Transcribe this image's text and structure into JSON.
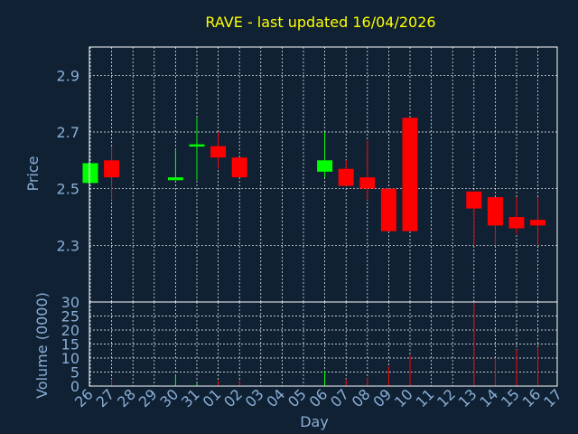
{
  "chart_data": {
    "type": "candlestick",
    "title": "RAVE - last updated 16/04/2026",
    "xlabel": "Day",
    "ylabel_price": "Price",
    "ylabel_volume": "Volume (0000)",
    "x_ticks": [
      "26",
      "27",
      "28",
      "29",
      "30",
      "31",
      "01",
      "02",
      "03",
      "04",
      "05",
      "06",
      "07",
      "08",
      "09",
      "10",
      "11",
      "12",
      "13",
      "14",
      "15",
      "16",
      "17"
    ],
    "price_ticks": [
      2.3,
      2.5,
      2.7,
      2.9
    ],
    "volume_ticks": [
      0,
      5,
      10,
      15,
      20,
      25,
      30
    ],
    "price_ylim": [
      2.1,
      3.0
    ],
    "volume_ylim": [
      0,
      30
    ],
    "grid": true,
    "candles": [
      {
        "day": "26",
        "open": 2.52,
        "high": 2.59,
        "low": 2.52,
        "close": 2.59
      },
      {
        "day": "27",
        "open": 2.6,
        "high": 2.65,
        "low": 2.46,
        "close": 2.54
      },
      {
        "day": "30",
        "open": 2.53,
        "high": 2.64,
        "low": 2.53,
        "close": 2.54
      },
      {
        "day": "31",
        "open": 2.65,
        "high": 2.75,
        "low": 2.53,
        "close": 2.655
      },
      {
        "day": "01",
        "open": 2.65,
        "high": 2.7,
        "low": 2.57,
        "close": 2.61
      },
      {
        "day": "02",
        "open": 2.61,
        "high": 2.61,
        "low": 2.54,
        "close": 2.54
      },
      {
        "day": "06",
        "open": 2.56,
        "high": 2.7,
        "low": 2.54,
        "close": 2.6
      },
      {
        "day": "07",
        "open": 2.57,
        "high": 2.6,
        "low": 2.51,
        "close": 2.51
      },
      {
        "day": "08",
        "open": 2.54,
        "high": 2.67,
        "low": 2.46,
        "close": 2.5
      },
      {
        "day": "09",
        "open": 2.5,
        "high": 2.5,
        "low": 2.35,
        "close": 2.35
      },
      {
        "day": "10",
        "open": 2.75,
        "high": 2.75,
        "low": 2.35,
        "close": 2.35
      },
      {
        "day": "13",
        "open": 2.49,
        "high": 2.49,
        "low": 2.3,
        "close": 2.43
      },
      {
        "day": "14",
        "open": 2.47,
        "high": 2.47,
        "low": 2.3,
        "close": 2.37
      },
      {
        "day": "15",
        "open": 2.4,
        "high": 2.47,
        "low": 2.34,
        "close": 2.36
      },
      {
        "day": "16",
        "open": 2.39,
        "high": 2.47,
        "low": 2.3,
        "close": 2.37
      }
    ],
    "volumes": [
      {
        "day": "27",
        "value": 2.5
      },
      {
        "day": "30",
        "value": 4
      },
      {
        "day": "31",
        "value": 1
      },
      {
        "day": "01",
        "value": 2
      },
      {
        "day": "02",
        "value": 2
      },
      {
        "day": "06",
        "value": 5.5
      },
      {
        "day": "07",
        "value": 2.5
      },
      {
        "day": "08",
        "value": 3
      },
      {
        "day": "09",
        "value": 7
      },
      {
        "day": "10",
        "value": 11
      },
      {
        "day": "13",
        "value": 30
      },
      {
        "day": "14",
        "value": 10
      },
      {
        "day": "15",
        "value": 13
      },
      {
        "day": "16",
        "value": 14
      }
    ],
    "colors": {
      "background": "#0f2133",
      "title": "#ffff00",
      "axis_text": "#8aaed6",
      "frame": "#ffffff",
      "up": "#00ff00",
      "down": "#ff0000"
    }
  }
}
